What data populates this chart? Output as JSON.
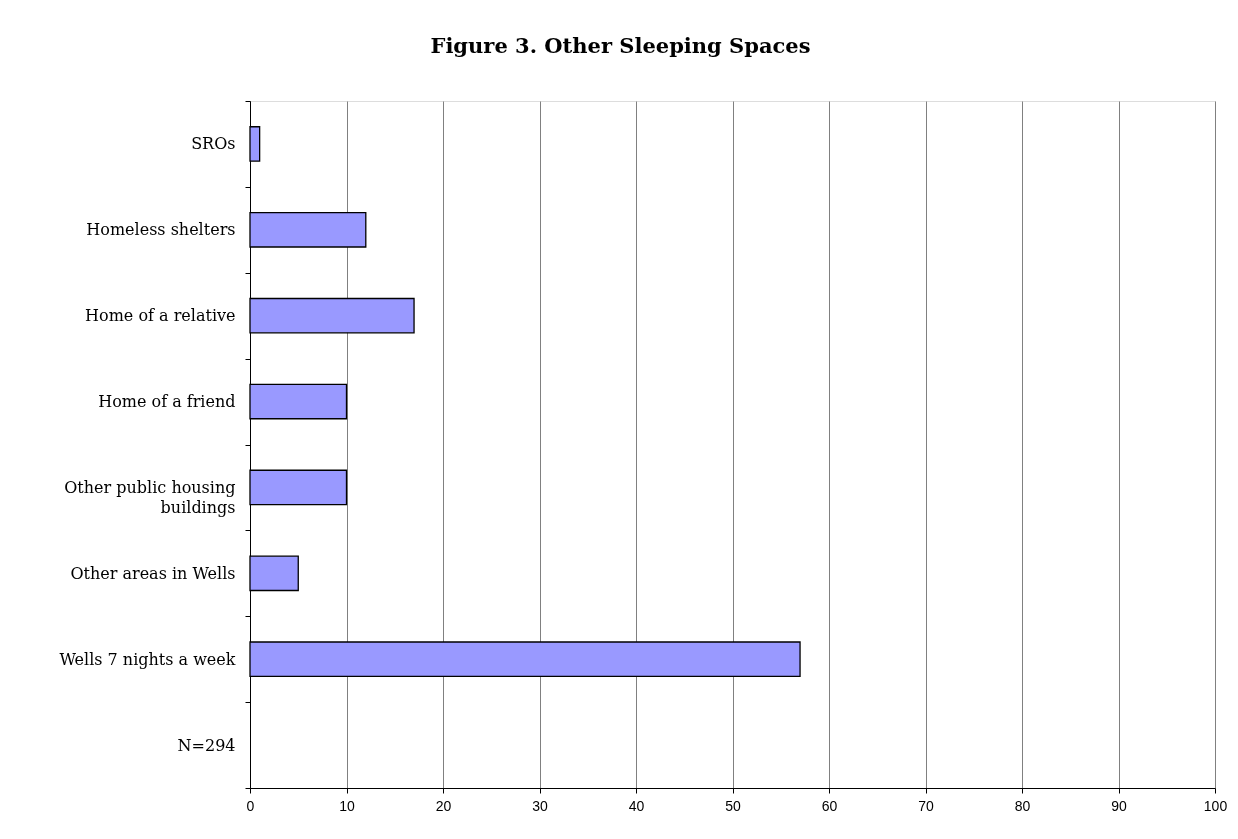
{
  "chart_data": {
    "type": "bar",
    "orientation": "horizontal",
    "title": "Figure 3.  Other Sleeping Spaces",
    "categories": [
      "SROs",
      "Homeless shelters",
      "Home of a relative",
      "Home of a friend",
      "Other public housing buildings",
      "Other areas in Wells",
      "Wells 7 nights a week",
      "N=294"
    ],
    "values": [
      1,
      12,
      17,
      10,
      10,
      5,
      57,
      null
    ],
    "color": "#9999ff",
    "xlim": [
      0,
      100
    ],
    "xticks": [
      0,
      10,
      20,
      30,
      40,
      50,
      60,
      70,
      80,
      90,
      100
    ],
    "grid": "x"
  }
}
